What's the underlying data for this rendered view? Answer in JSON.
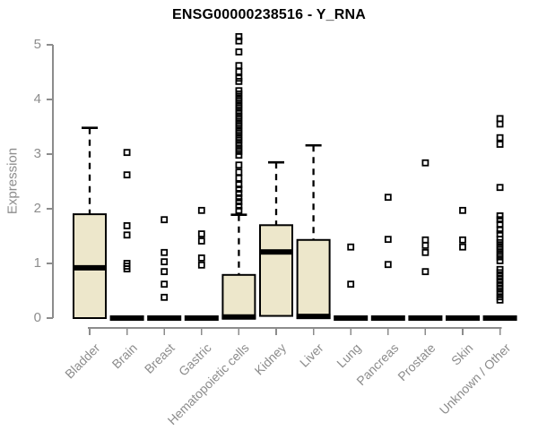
{
  "chart_data": {
    "type": "boxplot",
    "title": "ENSG00000238516 - Y_RNA",
    "ylabel": "Expression",
    "xlabel": "",
    "ylim": [
      0,
      5
    ],
    "yticks": [
      0,
      1,
      2,
      3,
      4,
      5
    ],
    "grid": false,
    "legend": "none",
    "colors": {
      "box_fill": "#EDE7CB",
      "box_stroke": "#000000",
      "median": "#000000",
      "outlier": "#000000",
      "axis": "#8C8C8C",
      "tick_label": "#8C8C8C",
      "title": "#000000",
      "background": "#FFFFFF"
    },
    "categories": [
      "Bladder",
      "Brain",
      "Breast",
      "Gastric",
      "Hematopoietic cells",
      "Kidney",
      "Liver",
      "Lung",
      "Pancreas",
      "Prostate",
      "Skin",
      "Unknown / Other"
    ],
    "series": [
      {
        "name": "Bladder",
        "whisker_low": 0,
        "q1": 0,
        "median": 0.92,
        "q3": 1.9,
        "whisker_high": 3.48,
        "outliers": []
      },
      {
        "name": "Brain",
        "whisker_low": 0,
        "q1": 0,
        "median": 0,
        "q3": 0,
        "whisker_high": 0,
        "outliers": [
          3.03,
          2.62,
          1.69,
          1.52,
          1.0,
          0.95,
          0.9
        ]
      },
      {
        "name": "Breast",
        "whisker_low": 0,
        "q1": 0,
        "median": 0,
        "q3": 0,
        "whisker_high": 0,
        "outliers": [
          1.8,
          1.2,
          1.03,
          0.85,
          0.62,
          0.38
        ]
      },
      {
        "name": "Gastric",
        "whisker_low": 0,
        "q1": 0,
        "median": 0,
        "q3": 0,
        "whisker_high": 0,
        "outliers": [
          1.97,
          1.54,
          1.41,
          1.1,
          0.97
        ]
      },
      {
        "name": "Hematopoietic cells",
        "whisker_low": 0,
        "q1": 0,
        "median": 0.02,
        "q3": 0.79,
        "whisker_high": 1.89,
        "outliers": [
          5.15,
          5.07,
          4.87,
          4.62,
          4.51,
          4.39,
          4.33,
          4.16,
          4.1,
          4.03,
          3.97,
          3.9,
          3.84,
          3.77,
          3.7,
          3.64,
          3.57,
          3.51,
          3.44,
          3.38,
          3.31,
          3.25,
          3.18,
          3.11,
          3.05,
          2.98,
          2.8,
          2.67,
          2.56,
          2.44,
          2.36,
          2.28,
          2.2,
          2.13,
          2.05,
          1.97
        ]
      },
      {
        "name": "Kidney",
        "whisker_low": 0,
        "q1": 0.04,
        "median": 1.21,
        "q3": 1.7,
        "whisker_high": 2.85,
        "outliers": []
      },
      {
        "name": "Liver",
        "whisker_low": 0,
        "q1": 0,
        "median": 0.03,
        "q3": 1.43,
        "whisker_high": 3.16,
        "outliers": []
      },
      {
        "name": "Lung",
        "whisker_low": 0,
        "q1": 0,
        "median": 0,
        "q3": 0,
        "whisker_high": 0,
        "outliers": [
          1.3,
          0.62
        ]
      },
      {
        "name": "Pancreas",
        "whisker_low": 0,
        "q1": 0,
        "median": 0,
        "q3": 0,
        "whisker_high": 0,
        "outliers": [
          2.21,
          1.44,
          0.98
        ]
      },
      {
        "name": "Prostate",
        "whisker_low": 0,
        "q1": 0,
        "median": 0,
        "q3": 0,
        "whisker_high": 0,
        "outliers": [
          2.84,
          1.43,
          1.33,
          1.2,
          0.85
        ]
      },
      {
        "name": "Skin",
        "whisker_low": 0,
        "q1": 0,
        "median": 0,
        "q3": 0,
        "whisker_high": 0,
        "outliers": [
          1.97,
          1.43,
          1.3
        ]
      },
      {
        "name": "Unknown / Other",
        "whisker_low": 0,
        "q1": 0,
        "median": 0,
        "q3": 0,
        "whisker_high": 0,
        "outliers": [
          3.65,
          3.55,
          3.3,
          3.18,
          2.39,
          1.87,
          1.8,
          1.72,
          1.61,
          1.54,
          1.44,
          1.38,
          1.31,
          1.25,
          1.18,
          1.12,
          1.05,
          0.89,
          0.83,
          0.77,
          0.71,
          0.65,
          0.59,
          0.53,
          0.46,
          0.39,
          0.33
        ]
      }
    ]
  }
}
